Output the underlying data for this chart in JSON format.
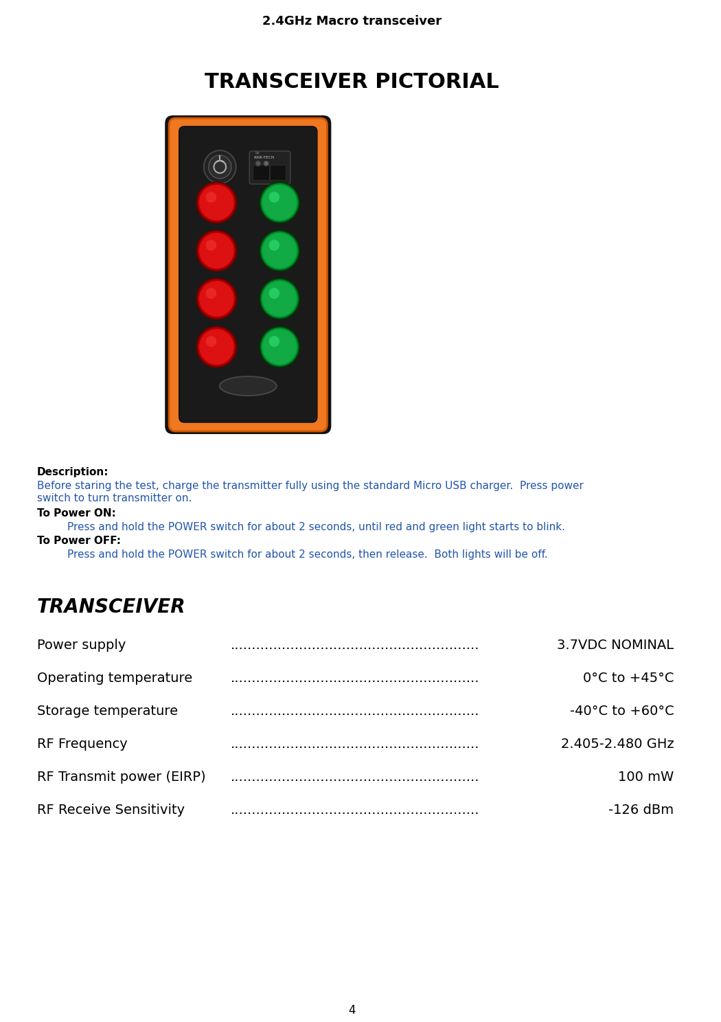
{
  "page_title": "2.4GHz Macro transceiver",
  "page_number": "4",
  "section_title": "TRANSCEIVER PICTORIAL",
  "description_label": "Description:",
  "desc_line1": "Before staring the test, charge the transmitter fully using the standard Micro USB charger.  Press power",
  "desc_line2": "switch to turn transmitter on.",
  "power_on_label": "To Power ON:",
  "power_on_text": "Press and hold the POWER switch for about 2 seconds, until red and green light starts to blink.",
  "power_off_label": "To Power OFF:",
  "power_off_text": "Press and hold the POWER switch for about 2 seconds, then release.  Both lights will be off.",
  "transceiver_label": "TRANSCEIVER",
  "specs": [
    {
      "label": "Power supply ",
      "value": "3.7VDC NOMINAL"
    },
    {
      "label": "Operating temperature",
      "value": "0°C to +45°C"
    },
    {
      "label": "Storage temperature",
      "value": "-40°C to +60°C"
    },
    {
      "label": "RF Frequency",
      "value": "2.405-2.480 GHz"
    },
    {
      "label": "RF Transmit power (EIRP)",
      "value": "100 mW"
    },
    {
      "label": "RF Receive Sensitivity ",
      "value": "-126 dBm"
    }
  ],
  "bg_color": "#ffffff",
  "title_color": "#000000",
  "blue_text_color": "#2255aa",
  "black_text_color": "#000000",
  "spec_text_color": "#000000",
  "orange_color": "#f07820",
  "dark_color": "#1a1a1a"
}
